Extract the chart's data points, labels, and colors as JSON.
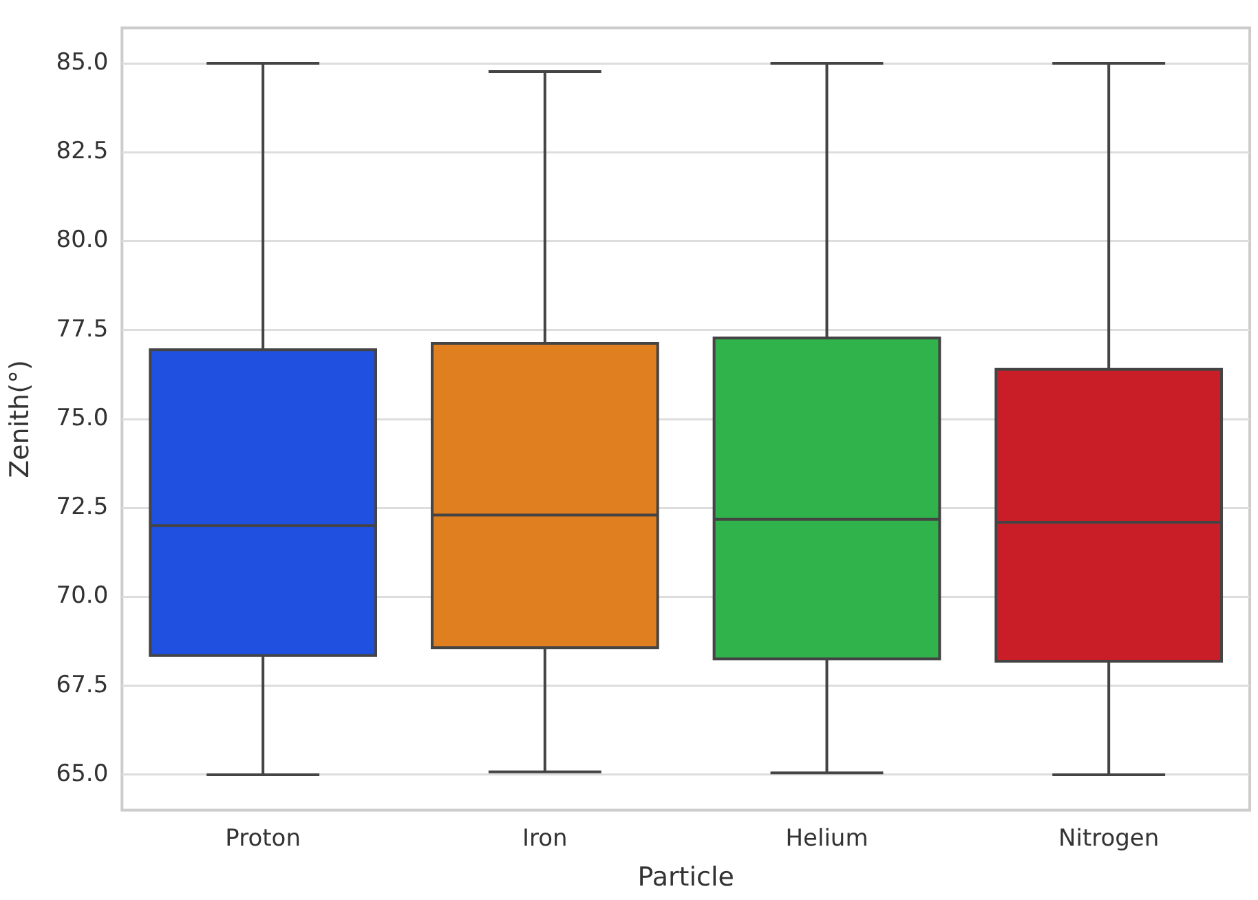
{
  "chart_data": {
    "type": "box",
    "xlabel": "Particle",
    "ylabel": "Zenith(°)",
    "categories": [
      "Proton",
      "Iron",
      "Helium",
      "Nitrogen"
    ],
    "colors": [
      "#2050e0",
      "#e07f20",
      "#30b34a",
      "#c91e28"
    ],
    "boxes": [
      {
        "low": 65.0,
        "q1": 68.35,
        "median": 72.0,
        "q3": 76.95,
        "high": 85.0
      },
      {
        "low": 65.08,
        "q1": 68.57,
        "median": 72.3,
        "q3": 77.13,
        "high": 84.77
      },
      {
        "low": 65.05,
        "q1": 68.26,
        "median": 72.18,
        "q3": 77.28,
        "high": 85.0
      },
      {
        "low": 65.0,
        "q1": 68.19,
        "median": 72.1,
        "q3": 76.4,
        "high": 85.0
      }
    ],
    "ylim": [
      64,
      86
    ],
    "yticks": [
      {
        "value": 65,
        "label": "65.0"
      },
      {
        "value": 67.5,
        "label": "67.5"
      },
      {
        "value": 70,
        "label": "70.0"
      },
      {
        "value": 72.5,
        "label": "72.5"
      },
      {
        "value": 75,
        "label": "75.0"
      },
      {
        "value": 77.5,
        "label": "77.5"
      },
      {
        "value": 80,
        "label": "80.0"
      },
      {
        "value": 82.5,
        "label": "82.5"
      },
      {
        "value": 85,
        "label": "85.0"
      }
    ],
    "grid": "y",
    "legend": false
  }
}
